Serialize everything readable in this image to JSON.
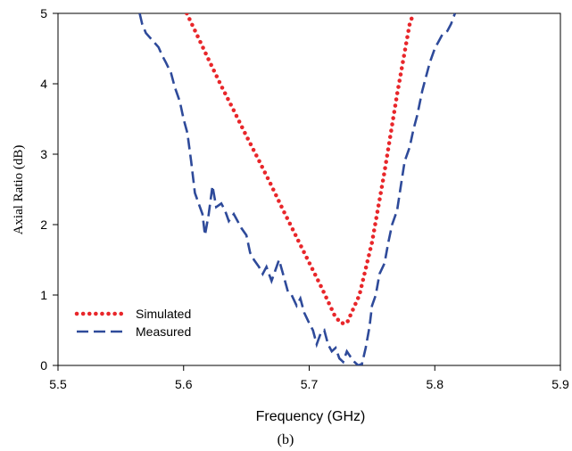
{
  "caption": "(b)",
  "chart_data": {
    "type": "line",
    "xlabel": "Frequency (GHz)",
    "ylabel": "Axial Ratio (dB)",
    "xlim": [
      5.5,
      5.9
    ],
    "ylim": [
      0,
      5
    ],
    "xticks": [
      "5.5",
      "5.6",
      "5.7",
      "5.8",
      "5.9"
    ],
    "yticks": [
      "0",
      "1",
      "2",
      "3",
      "4",
      "5"
    ],
    "grid": false,
    "legend_position": "bottom-left",
    "series": [
      {
        "name": "Simulated",
        "color": "#e8262a",
        "style": "dotted",
        "points": [
          [
            5.6025,
            5.0
          ],
          [
            5.61,
            4.72
          ],
          [
            5.62,
            4.34
          ],
          [
            5.63,
            3.97
          ],
          [
            5.64,
            3.62
          ],
          [
            5.65,
            3.26
          ],
          [
            5.66,
            2.91
          ],
          [
            5.67,
            2.55
          ],
          [
            5.68,
            2.18
          ],
          [
            5.69,
            1.82
          ],
          [
            5.7,
            1.46
          ],
          [
            5.71,
            1.1
          ],
          [
            5.72,
            0.72
          ],
          [
            5.725,
            0.6
          ],
          [
            5.73,
            0.6
          ],
          [
            5.74,
            1.0
          ],
          [
            5.75,
            1.75
          ],
          [
            5.76,
            2.75
          ],
          [
            5.77,
            3.85
          ],
          [
            5.78,
            4.85
          ],
          [
            5.783,
            5.0
          ]
        ]
      },
      {
        "name": "Measured",
        "color": "#2e4a9a",
        "style": "dashed",
        "points": [
          [
            5.565,
            5.0
          ],
          [
            5.567,
            4.85
          ],
          [
            5.57,
            4.72
          ],
          [
            5.575,
            4.62
          ],
          [
            5.58,
            4.52
          ],
          [
            5.583,
            4.4
          ],
          [
            5.586,
            4.3
          ],
          [
            5.59,
            4.15
          ],
          [
            5.593,
            3.95
          ],
          [
            5.597,
            3.75
          ],
          [
            5.6,
            3.5
          ],
          [
            5.603,
            3.3
          ],
          [
            5.606,
            2.9
          ],
          [
            5.609,
            2.45
          ],
          [
            5.612,
            2.3
          ],
          [
            5.615,
            2.15
          ],
          [
            5.617,
            1.85
          ],
          [
            5.62,
            2.15
          ],
          [
            5.623,
            2.55
          ],
          [
            5.626,
            2.25
          ],
          [
            5.63,
            2.3
          ],
          [
            5.633,
            2.2
          ],
          [
            5.636,
            2.05
          ],
          [
            5.64,
            2.15
          ],
          [
            5.643,
            2.05
          ],
          [
            5.646,
            1.95
          ],
          [
            5.65,
            1.85
          ],
          [
            5.653,
            1.6
          ],
          [
            5.656,
            1.5
          ],
          [
            5.66,
            1.4
          ],
          [
            5.663,
            1.3
          ],
          [
            5.666,
            1.4
          ],
          [
            5.67,
            1.2
          ],
          [
            5.673,
            1.35
          ],
          [
            5.676,
            1.5
          ],
          [
            5.68,
            1.25
          ],
          [
            5.683,
            1.05
          ],
          [
            5.686,
            1.0
          ],
          [
            5.69,
            0.85
          ],
          [
            5.693,
            0.95
          ],
          [
            5.696,
            0.75
          ],
          [
            5.7,
            0.6
          ],
          [
            5.703,
            0.5
          ],
          [
            5.706,
            0.3
          ],
          [
            5.709,
            0.45
          ],
          [
            5.712,
            0.5
          ],
          [
            5.715,
            0.3
          ],
          [
            5.718,
            0.2
          ],
          [
            5.721,
            0.25
          ],
          [
            5.724,
            0.1
          ],
          [
            5.727,
            0.05
          ],
          [
            5.73,
            0.2
          ],
          [
            5.733,
            0.12
          ],
          [
            5.736,
            0.05
          ],
          [
            5.739,
            0.0
          ],
          [
            5.742,
            0.02
          ],
          [
            5.745,
            0.25
          ],
          [
            5.748,
            0.55
          ],
          [
            5.75,
            0.85
          ],
          [
            5.753,
            1.0
          ],
          [
            5.756,
            1.3
          ],
          [
            5.76,
            1.45
          ],
          [
            5.763,
            1.75
          ],
          [
            5.766,
            2.0
          ],
          [
            5.77,
            2.2
          ],
          [
            5.773,
            2.55
          ],
          [
            5.776,
            2.9
          ],
          [
            5.78,
            3.1
          ],
          [
            5.783,
            3.35
          ],
          [
            5.786,
            3.55
          ],
          [
            5.79,
            3.9
          ],
          [
            5.793,
            4.1
          ],
          [
            5.796,
            4.3
          ],
          [
            5.8,
            4.5
          ],
          [
            5.803,
            4.6
          ],
          [
            5.806,
            4.7
          ],
          [
            5.81,
            4.75
          ],
          [
            5.813,
            4.85
          ],
          [
            5.816,
            5.0
          ]
        ]
      }
    ]
  }
}
